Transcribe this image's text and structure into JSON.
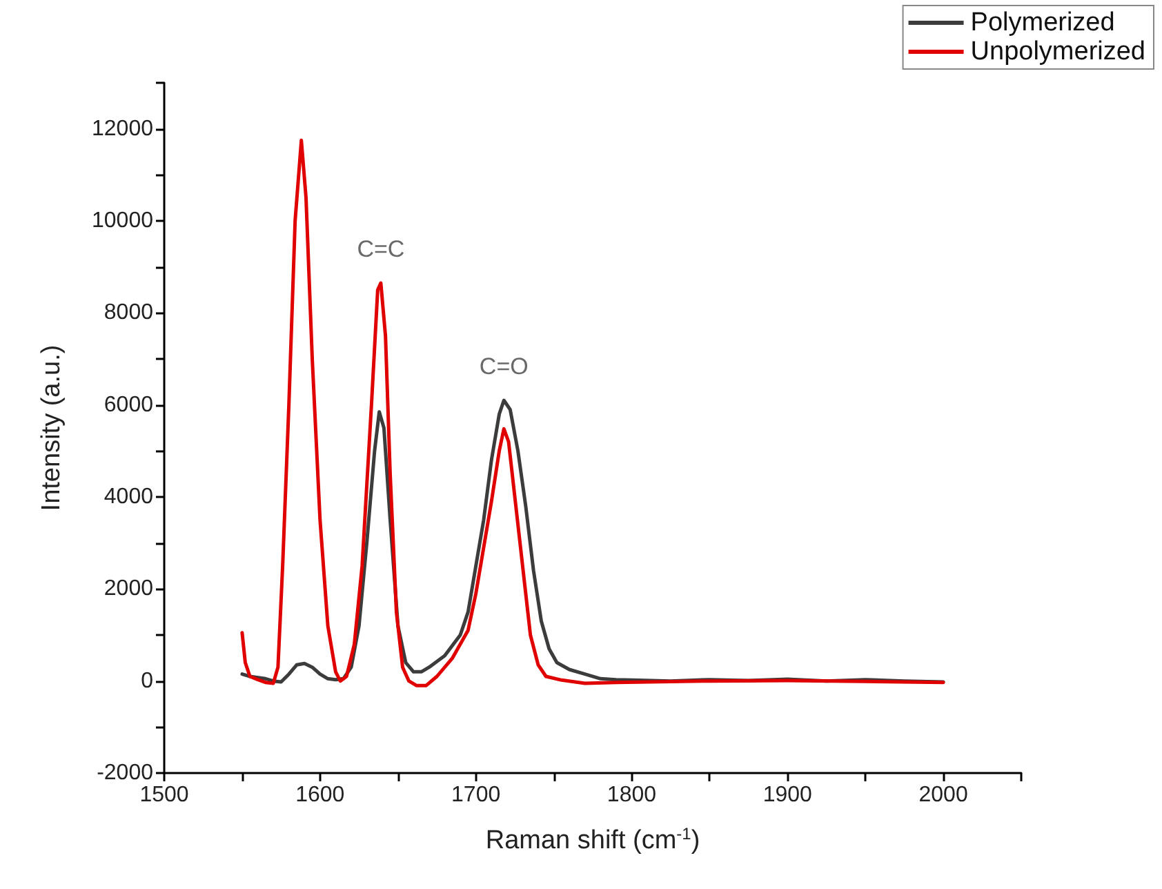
{
  "chart_data": {
    "type": "line",
    "xlabel": "Raman shift (cm$^{-1}$)",
    "ylabel": "Intensity (a.u.)",
    "xlim": [
      1500,
      2050
    ],
    "xticks": [
      1500,
      {
        "value": 1550,
        "label": null
      },
      1600,
      {
        "value": 1650,
        "label": null
      },
      1700,
      {
        "value": 1750,
        "label": null
      },
      1800,
      {
        "value": 1850,
        "label": null
      },
      1900,
      {
        "value": 1950,
        "label": null
      },
      2000,
      {
        "value": 2050,
        "label": null
      }
    ],
    "ylim": [
      -2000,
      13000
    ],
    "yticks": [
      -2000,
      {
        "value": -1000,
        "label": null
      },
      0,
      {
        "value": 1000,
        "label": null
      },
      2000,
      {
        "value": 3000,
        "label": null
      },
      4000,
      {
        "value": 5000,
        "label": null
      },
      6000,
      {
        "value": 7000,
        "label": null
      },
      8000,
      {
        "value": 9000,
        "label": null
      },
      10000,
      {
        "value": 11000,
        "label": null
      },
      12000,
      {
        "value": 13000,
        "label": null
      }
    ],
    "grid": false,
    "legend": "top right",
    "marker": "none",
    "line_style": "solid",
    "annotations": [
      {
        "text": "C=C",
        "x": 1639,
        "y": 8650
      },
      {
        "text": "C=O",
        "x": 1718,
        "y": 6100
      }
    ],
    "series": [
      {
        "name": "Polymerized",
        "color": "#3c3c3c",
        "x": [
          1550,
          1555,
          1565,
          1570,
          1575,
          1580,
          1585,
          1590,
          1595,
          1600,
          1605,
          1610,
          1615,
          1620,
          1625,
          1630,
          1635,
          1638,
          1641,
          1645,
          1650,
          1655,
          1660,
          1665,
          1670,
          1680,
          1690,
          1695,
          1700,
          1705,
          1710,
          1715,
          1718,
          1722,
          1727,
          1732,
          1737,
          1742,
          1747,
          1752,
          1760,
          1770,
          1780,
          1790,
          1800,
          1825,
          1850,
          1875,
          1900,
          1925,
          1950,
          1975,
          2000
        ],
        "values": [
          150,
          100,
          50,
          0,
          -20,
          150,
          350,
          380,
          300,
          150,
          50,
          30,
          50,
          300,
          1200,
          3000,
          5000,
          5850,
          5500,
          3500,
          1200,
          400,
          200,
          200,
          300,
          550,
          1000,
          1500,
          2500,
          3500,
          4800,
          5800,
          6100,
          5900,
          5000,
          3800,
          2400,
          1300,
          700,
          400,
          250,
          150,
          50,
          30,
          20,
          0,
          30,
          10,
          40,
          0,
          30,
          0,
          -20
        ]
      },
      {
        "name": "Unpolymerized",
        "color": "#e00000",
        "x": [
          1550,
          1552,
          1555,
          1560,
          1565,
          1570,
          1573,
          1576,
          1580,
          1584,
          1588,
          1591,
          1595,
          1600,
          1605,
          1610,
          1613,
          1617,
          1622,
          1627,
          1633,
          1637,
          1639,
          1642,
          1645,
          1649,
          1653,
          1657,
          1662,
          1668,
          1675,
          1685,
          1695,
          1700,
          1705,
          1710,
          1715,
          1718,
          1721,
          1725,
          1730,
          1735,
          1740,
          1745,
          1755,
          1770,
          1790,
          1850,
          1900,
          1950,
          2000
        ],
        "values": [
          1050,
          400,
          100,
          30,
          -30,
          -50,
          300,
          2500,
          6000,
          10000,
          11750,
          10500,
          7000,
          3500,
          1200,
          200,
          0,
          100,
          800,
          2500,
          6000,
          8500,
          8650,
          7500,
          4500,
          1500,
          300,
          0,
          -100,
          -100,
          100,
          500,
          1100,
          1900,
          2900,
          3900,
          5000,
          5480,
          5200,
          4000,
          2500,
          1000,
          350,
          100,
          20,
          -50,
          -30,
          0,
          10,
          -10,
          -30
        ]
      }
    ]
  }
}
